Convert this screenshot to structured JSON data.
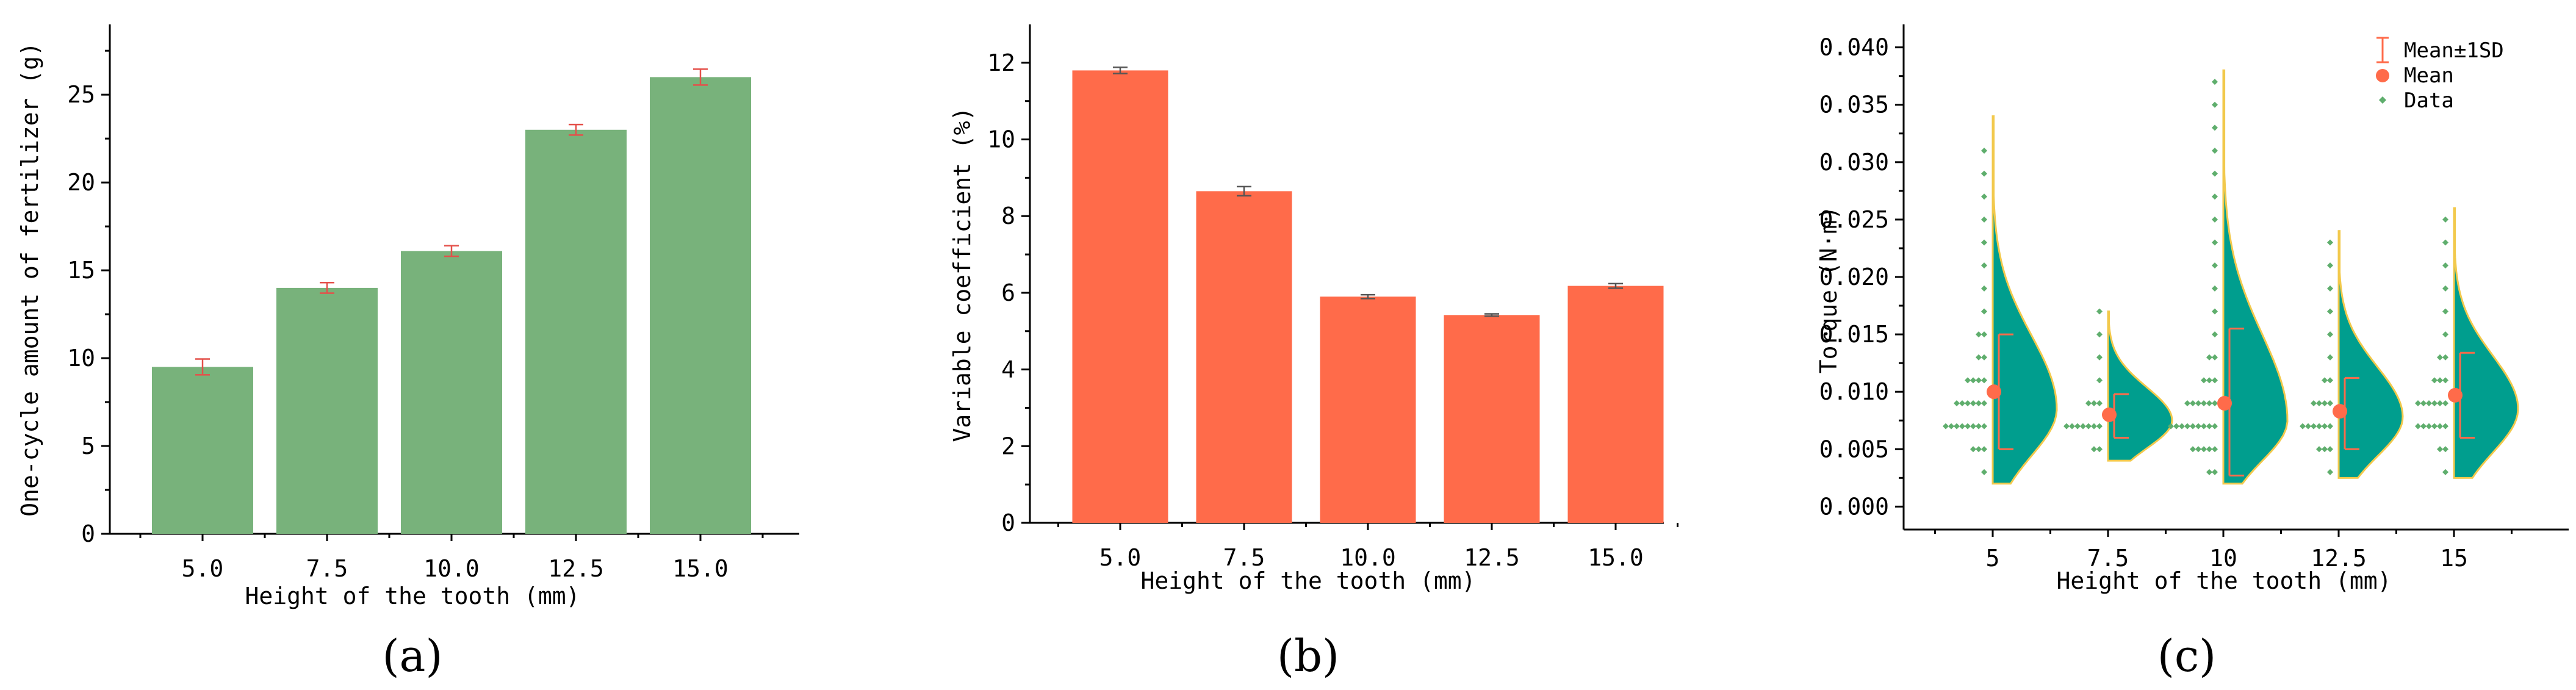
{
  "colors": {
    "bar_a": "#78b27b",
    "bar_b": "#ff6b4a",
    "err_a": "#e4504a",
    "err_b": "#555555",
    "violin_fill": "#009e8e",
    "violin_edge": "#f2c94c",
    "data_pts": "#5fae6d",
    "mean_pt": "#ff6b4a",
    "sd_line": "#ff6b4a"
  },
  "chart_data": [
    {
      "id": "a",
      "panel_label": "(a)",
      "type": "bar",
      "categories": [
        "5.0",
        "7.5",
        "10.0",
        "12.5",
        "15.0"
      ],
      "values": [
        9.5,
        14.0,
        16.1,
        23.0,
        26.0
      ],
      "errors": [
        0.45,
        0.3,
        0.3,
        0.3,
        0.45
      ],
      "ylabel": "One-cycle amount of fertilizer (g)",
      "xlabel": "Height of the tooth (mm)",
      "ylim": [
        0,
        29
      ],
      "yticks": [
        "0",
        "5",
        "10",
        "15",
        "20",
        "25"
      ],
      "ytick_values": [
        0,
        5,
        10,
        15,
        20,
        25
      ]
    },
    {
      "id": "b",
      "panel_label": "(b)",
      "type": "bar",
      "categories": [
        "5.0",
        "7.5",
        "10.0",
        "12.5",
        "15.0"
      ],
      "values": [
        11.8,
        8.65,
        5.9,
        5.42,
        6.18
      ],
      "errors": [
        0.08,
        0.12,
        0.05,
        0.03,
        0.06
      ],
      "ylabel": "Variable coefficient (%)",
      "xlabel": "Height of the tooth (mm)",
      "ylim": [
        0,
        13
      ],
      "yticks": [
        "0",
        "2",
        "4",
        "6",
        "8",
        "10",
        "12"
      ],
      "ytick_values": [
        0,
        2,
        4,
        6,
        8,
        10,
        12
      ]
    },
    {
      "id": "c",
      "panel_label": "(c)",
      "type": "violin",
      "categories": [
        "5",
        "7.5",
        "10",
        "12.5",
        "15"
      ],
      "ylabel": "Torque (N·m)",
      "xlabel": "Height of the tooth (mm)",
      "ylim": [
        -0.002,
        0.042
      ],
      "yticks": [
        "0.000",
        "0.005",
        "0.010",
        "0.015",
        "0.020",
        "0.025",
        "0.030",
        "0.035",
        "0.040"
      ],
      "ytick_values": [
        0,
        0.005,
        0.01,
        0.015,
        0.02,
        0.025,
        0.03,
        0.035,
        0.04
      ],
      "legend": [
        "Mean±1SD",
        "Mean",
        "Data"
      ],
      "series": [
        {
          "name": "5",
          "mean": 0.01,
          "sd_low": 0.005,
          "sd_high": 0.015,
          "violin_min": 0.002,
          "violin_max": 0.034,
          "peak_y": 0.0085,
          "data": [
            {
              "y": 0.003,
              "n": 1
            },
            {
              "y": 0.005,
              "n": 3
            },
            {
              "y": 0.007,
              "n": 8
            },
            {
              "y": 0.009,
              "n": 6
            },
            {
              "y": 0.011,
              "n": 4
            },
            {
              "y": 0.013,
              "n": 2
            },
            {
              "y": 0.015,
              "n": 2
            },
            {
              "y": 0.017,
              "n": 1
            },
            {
              "y": 0.019,
              "n": 1
            },
            {
              "y": 0.021,
              "n": 1
            },
            {
              "y": 0.023,
              "n": 1
            },
            {
              "y": 0.025,
              "n": 1
            },
            {
              "y": 0.027,
              "n": 1
            },
            {
              "y": 0.029,
              "n": 1
            },
            {
              "y": 0.031,
              "n": 1
            }
          ]
        },
        {
          "name": "7.5",
          "mean": 0.008,
          "sd_low": 0.006,
          "sd_high": 0.0098,
          "violin_min": 0.004,
          "violin_max": 0.017,
          "peak_y": 0.0075,
          "data": [
            {
              "y": 0.005,
              "n": 2
            },
            {
              "y": 0.007,
              "n": 7
            },
            {
              "y": 0.009,
              "n": 3
            },
            {
              "y": 0.011,
              "n": 1
            },
            {
              "y": 0.013,
              "n": 1
            },
            {
              "y": 0.015,
              "n": 1
            },
            {
              "y": 0.017,
              "n": 1
            }
          ]
        },
        {
          "name": "10",
          "mean": 0.009,
          "sd_low": 0.0027,
          "sd_high": 0.0155,
          "violin_min": 0.002,
          "violin_max": 0.038,
          "peak_y": 0.0075,
          "data": [
            {
              "y": 0.003,
              "n": 2
            },
            {
              "y": 0.005,
              "n": 5
            },
            {
              "y": 0.007,
              "n": 9
            },
            {
              "y": 0.009,
              "n": 6
            },
            {
              "y": 0.011,
              "n": 3
            },
            {
              "y": 0.013,
              "n": 2
            },
            {
              "y": 0.015,
              "n": 1
            },
            {
              "y": 0.017,
              "n": 1
            },
            {
              "y": 0.019,
              "n": 1
            },
            {
              "y": 0.021,
              "n": 1
            },
            {
              "y": 0.023,
              "n": 1
            },
            {
              "y": 0.025,
              "n": 1
            },
            {
              "y": 0.027,
              "n": 1
            },
            {
              "y": 0.029,
              "n": 1
            },
            {
              "y": 0.031,
              "n": 1
            },
            {
              "y": 0.033,
              "n": 1
            },
            {
              "y": 0.035,
              "n": 1
            },
            {
              "y": 0.037,
              "n": 1
            }
          ]
        },
        {
          "name": "12.5",
          "mean": 0.0083,
          "sd_low": 0.005,
          "sd_high": 0.0112,
          "violin_min": 0.0025,
          "violin_max": 0.024,
          "peak_y": 0.0078,
          "data": [
            {
              "y": 0.003,
              "n": 1
            },
            {
              "y": 0.005,
              "n": 3
            },
            {
              "y": 0.007,
              "n": 6
            },
            {
              "y": 0.009,
              "n": 4
            },
            {
              "y": 0.011,
              "n": 2
            },
            {
              "y": 0.013,
              "n": 1
            },
            {
              "y": 0.015,
              "n": 1
            },
            {
              "y": 0.017,
              "n": 1
            },
            {
              "y": 0.019,
              "n": 1
            },
            {
              "y": 0.021,
              "n": 1
            },
            {
              "y": 0.023,
              "n": 1
            }
          ]
        },
        {
          "name": "15",
          "mean": 0.0097,
          "sd_low": 0.006,
          "sd_high": 0.0134,
          "violin_min": 0.0025,
          "violin_max": 0.026,
          "peak_y": 0.0085,
          "data": [
            {
              "y": 0.003,
              "n": 1
            },
            {
              "y": 0.005,
              "n": 2
            },
            {
              "y": 0.007,
              "n": 6
            },
            {
              "y": 0.009,
              "n": 6
            },
            {
              "y": 0.011,
              "n": 3
            },
            {
              "y": 0.013,
              "n": 2
            },
            {
              "y": 0.015,
              "n": 1
            },
            {
              "y": 0.017,
              "n": 1
            },
            {
              "y": 0.019,
              "n": 1
            },
            {
              "y": 0.021,
              "n": 1
            },
            {
              "y": 0.023,
              "n": 1
            },
            {
              "y": 0.025,
              "n": 1
            }
          ]
        }
      ]
    }
  ]
}
